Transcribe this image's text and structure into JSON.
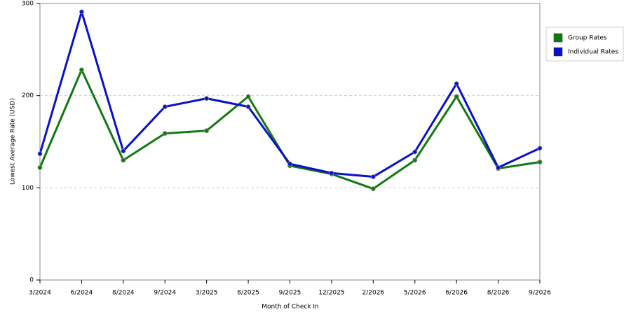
{
  "chart_data": {
    "type": "line",
    "x_label": "Month of Check In",
    "y_label": "Lowest Average Rate (USD)",
    "categories": [
      "3/2024",
      "6/2024",
      "8/2024",
      "9/2024",
      "3/2025",
      "8/2025",
      "9/2025",
      "12/2025",
      "2/2026",
      "5/2026",
      "6/2026",
      "8/2026",
      "9/2026"
    ],
    "series": [
      {
        "name": "Group Rates",
        "color": "#0f7a0f",
        "values": [
          122,
          228,
          130,
          159,
          162,
          199,
          124,
          115,
          99,
          130,
          199,
          121,
          128
        ]
      },
      {
        "name": "Individual Rates",
        "color": "#0a10c8",
        "values": [
          137,
          291,
          140,
          188,
          197,
          188,
          126,
          116,
          112,
          139,
          213,
          122,
          143
        ]
      }
    ],
    "ylim": [
      0,
      300
    ],
    "yticks": [
      0,
      100,
      200,
      300
    ],
    "grid": true,
    "legend": "top-right"
  }
}
